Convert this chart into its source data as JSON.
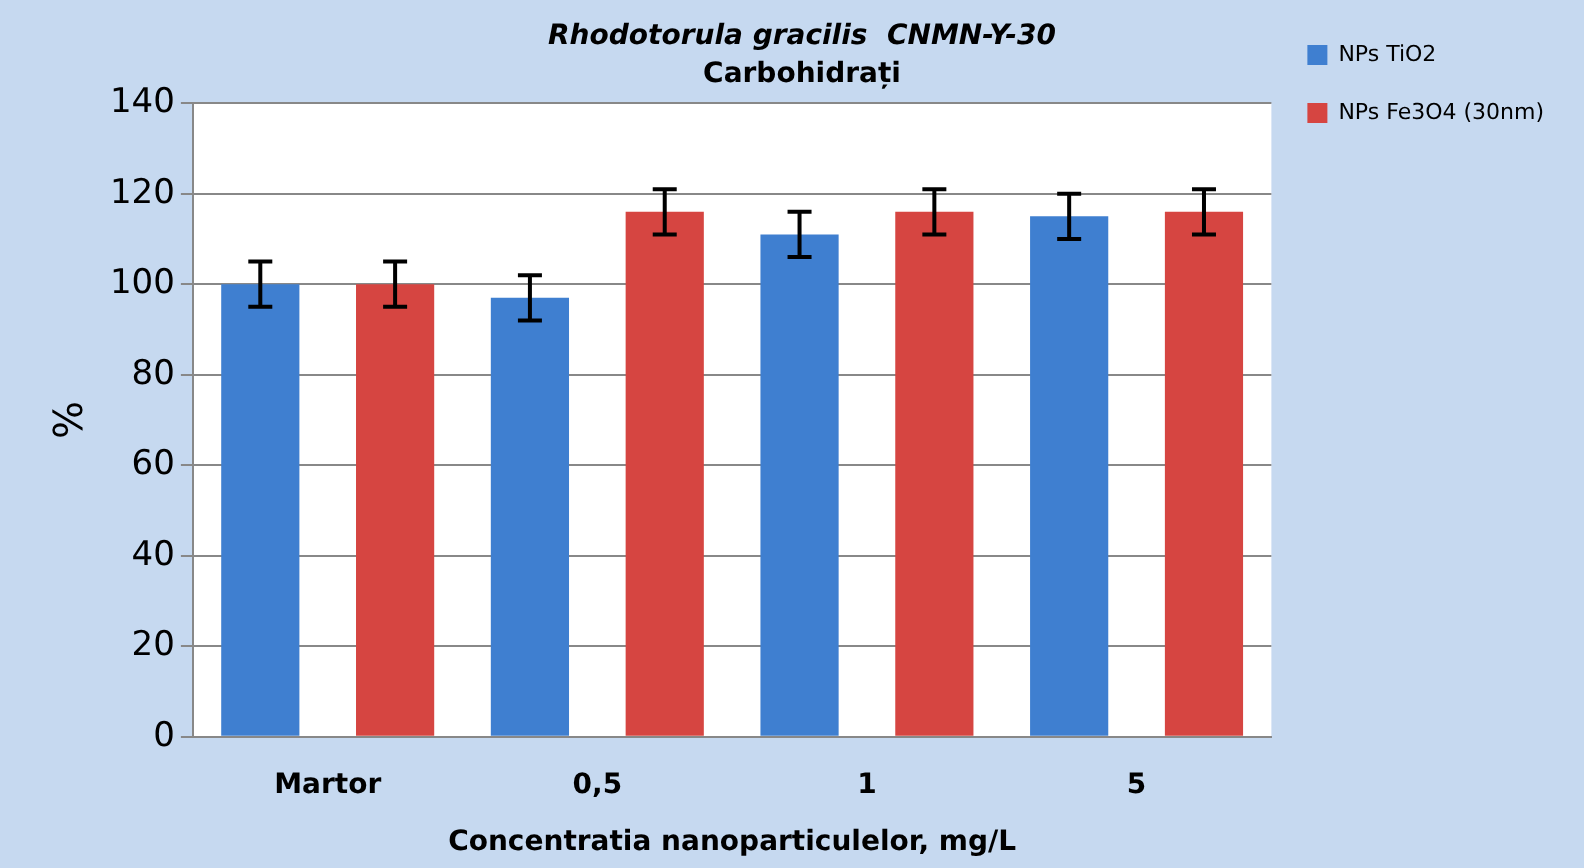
{
  "chart_data": {
    "type": "bar",
    "title": "Rhodotorula gracilis  CNMN-Y-30",
    "subtitle": "Carbohidrați",
    "xlabel": "Concentratia nanoparticulelor, mg/L",
    "ylabel": "%",
    "categories": [
      "Martor",
      "0,5",
      "1",
      "5"
    ],
    "series": [
      {
        "name": "NPs TiO2",
        "color": "#3f7fd0",
        "values": [
          100,
          97,
          111,
          115
        ],
        "errors": [
          5,
          5,
          5,
          5
        ]
      },
      {
        "name": "NPs Fe3O4 (30nm)",
        "color": "#d64541",
        "values": [
          100,
          116,
          116,
          116
        ],
        "errors": [
          5,
          5,
          5,
          5
        ]
      }
    ],
    "ylim": [
      0,
      140
    ],
    "yticks": [
      0,
      20,
      40,
      60,
      80,
      100,
      120,
      140
    ],
    "grid": "y",
    "legend": "top right"
  }
}
